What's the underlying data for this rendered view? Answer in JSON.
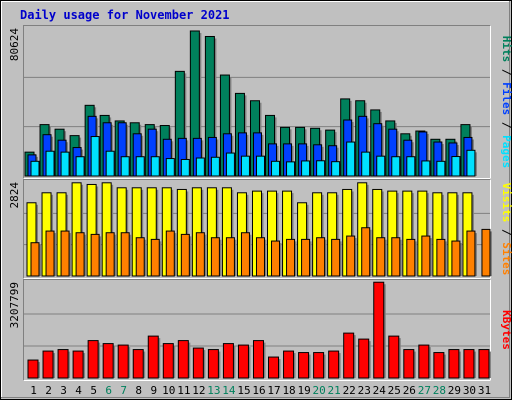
{
  "title": "Daily usage for November 2021",
  "separator": " / ",
  "colors": {
    "background": "#c0c0c0",
    "panel": "#c0c0c0",
    "title": "#0000cc",
    "hits": "#00805c",
    "files": "#0040ff",
    "pages": "#00e0ff",
    "visits": "#ffff00",
    "sites": "#ff8000",
    "kbytes": "#ff0000",
    "weekday_label": "#000000",
    "weekend_label": "#00805c"
  },
  "chart_data": {
    "type": "bar",
    "x": [
      "1",
      "2",
      "3",
      "4",
      "5",
      "6",
      "7",
      "8",
      "9",
      "10",
      "11",
      "12",
      "13",
      "14",
      "15",
      "16",
      "17",
      "18",
      "19",
      "20",
      "21",
      "22",
      "23",
      "24",
      "25",
      "26",
      "27",
      "28",
      "29",
      "30",
      "31"
    ],
    "weekend_days": [
      6,
      7,
      13,
      14,
      20,
      21,
      27,
      28
    ],
    "panels": [
      {
        "key": "hits_files_pages",
        "ymax_label": "80624",
        "ymax": 80624,
        "legend": [
          "Pages",
          "Files",
          "Hits"
        ],
        "series": [
          {
            "name": "Hits",
            "color_key": "hits",
            "values": [
              13000,
              28000,
              25500,
              22000,
              38500,
              33000,
              30000,
              29000,
              28000,
              27500,
              57000,
              79000,
              76000,
              55000,
              45000,
              41000,
              33000,
              26500,
              26500,
              26000,
              25000,
              42000,
              41000,
              36000,
              30000,
              23000,
              24500,
              20000,
              20000,
              28000,
              0
            ]
          },
          {
            "name": "Files",
            "color_key": "files",
            "values": [
              11500,
              22500,
              19500,
              15500,
              32500,
              29000,
              29000,
              23000,
              25500,
              20000,
              20500,
              20500,
              21000,
              23000,
              23500,
              23500,
              17500,
              17500,
              17500,
              17000,
              16500,
              30500,
              32500,
              28500,
              25500,
              19500,
              24000,
              18500,
              18000,
              21000,
              0
            ]
          },
          {
            "name": "Pages",
            "color_key": "pages",
            "values": [
              8000,
              13500,
              13000,
              10500,
              21500,
              13500,
              10500,
              10500,
              10500,
              9500,
              9000,
              9800,
              10200,
              12500,
              10800,
              10800,
              8000,
              7700,
              8200,
              8300,
              7800,
              18500,
              13000,
              10800,
              10500,
              10500,
              8200,
              8000,
              10600,
              14000,
              0
            ]
          }
        ]
      },
      {
        "key": "visits_sites",
        "ymax_label": "2824",
        "ymax": 2824,
        "legend": [
          "Sites",
          "Visits"
        ],
        "series": [
          {
            "name": "Visits",
            "color_key": "visits",
            "values": [
              2200,
              2500,
              2500,
              2800,
              2750,
              2800,
              2650,
              2650,
              2650,
              2650,
              2600,
              2650,
              2650,
              2650,
              2500,
              2550,
              2550,
              2550,
              2200,
              2500,
              2500,
              2600,
              2800,
              2600,
              2550,
              2550,
              2550,
              2500,
              2500,
              2500,
              0
            ]
          },
          {
            "name": "Sites",
            "color_key": "sites",
            "values": [
              1000,
              1350,
              1350,
              1300,
              1250,
              1300,
              1300,
              1150,
              1100,
              1350,
              1250,
              1300,
              1150,
              1150,
              1300,
              1150,
              1050,
              1100,
              1100,
              1150,
              1100,
              1200,
              1450,
              1150,
              1150,
              1100,
              1200,
              1100,
              1050,
              1350,
              1400
            ]
          }
        ]
      },
      {
        "key": "kbytes",
        "ymax_label": "3207799",
        "ymax": 3207799,
        "legend": [
          "KBytes"
        ],
        "series": [
          {
            "name": "KBytes",
            "color_key": "kbytes",
            "values": [
              600000,
              900000,
              950000,
              900000,
              1250000,
              1150000,
              1100000,
              950000,
              1400000,
              1150000,
              1250000,
              1000000,
              950000,
              1150000,
              1100000,
              1250000,
              700000,
              900000,
              850000,
              850000,
              900000,
              1500000,
              1300000,
              3200000,
              1400000,
              950000,
              1100000,
              850000,
              950000,
              950000,
              950000
            ]
          }
        ]
      }
    ]
  }
}
